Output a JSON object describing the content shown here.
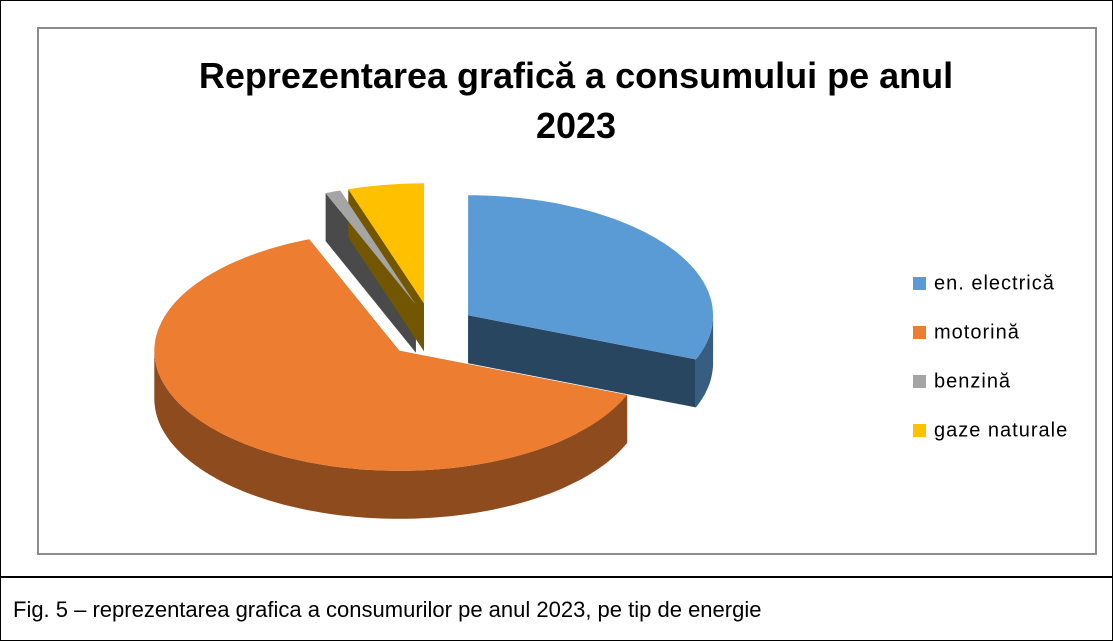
{
  "chart_data": {
    "type": "pie",
    "title": "Reprezentarea grafică a consumului pe anul 2023",
    "categories": [
      "en. electrică",
      "motorină",
      "benzină",
      "gaze naturale"
    ],
    "values": [
      31,
      63,
      1,
      5
    ],
    "colors": [
      "#5b9bd5",
      "#ed7d31",
      "#a5a5a5",
      "#ffc000"
    ],
    "legend": "right"
  },
  "caption": "Fig. 5 – reprezentarea grafica a consumurilor pe anul 2023, pe tip de energie"
}
